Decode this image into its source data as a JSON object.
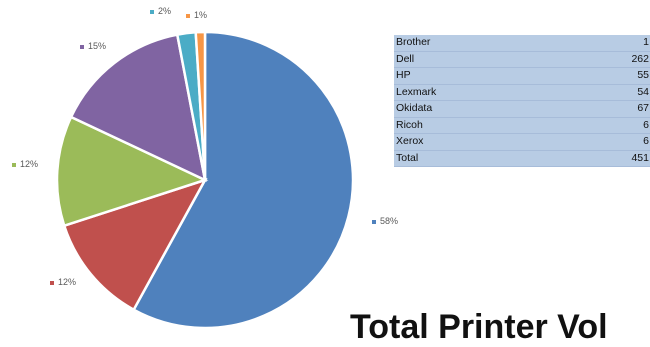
{
  "chart_data": {
    "type": "pie",
    "slices": [
      {
        "label": "58%",
        "value": 58,
        "color": "#4f81bd"
      },
      {
        "label": "12%",
        "value": 12,
        "color": "#c0504d"
      },
      {
        "label": "12%",
        "value": 12,
        "color": "#9bbb59"
      },
      {
        "label": "15%",
        "value": 15,
        "color": "#8064a2"
      },
      {
        "label": "2%",
        "value": 2,
        "color": "#4bacc6"
      },
      {
        "label": "1%",
        "value": 1,
        "color": "#f79646"
      }
    ]
  },
  "table": {
    "rows": [
      {
        "name": "Brother",
        "value": "1"
      },
      {
        "name": "Dell",
        "value": "262"
      },
      {
        "name": "HP",
        "value": "55"
      },
      {
        "name": "Lexmark",
        "value": "54"
      },
      {
        "name": "Okidata",
        "value": "67"
      },
      {
        "name": "Ricoh",
        "value": "6"
      },
      {
        "name": "Xerox",
        "value": "6"
      },
      {
        "name": "Total",
        "value": "451"
      }
    ]
  },
  "footer_title": "Total Printer Vol"
}
